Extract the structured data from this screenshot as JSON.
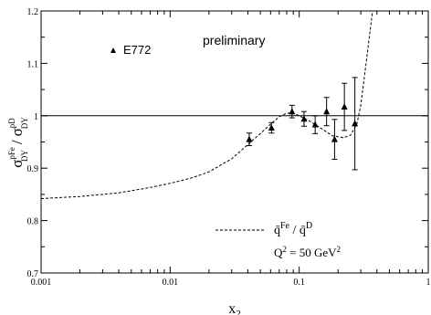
{
  "chart_data": {
    "type": "scatter",
    "title": "",
    "annotation": "preliminary",
    "xlabel": {
      "base": "x",
      "sub": "2"
    },
    "ylabel": {
      "sigma": "σ",
      "sup1": "pFe",
      "sub1": "DY",
      "slash": "/",
      "sup2": "pD",
      "sub2": "DY"
    },
    "x_scale": "log",
    "xlim": [
      0.001,
      1
    ],
    "ylim": [
      0.7,
      1.2
    ],
    "x_ticks": [
      {
        "value": 0.001,
        "label": "0.001"
      },
      {
        "value": 0.01,
        "label": "0.01"
      },
      {
        "value": 0.1,
        "label": "0.1"
      },
      {
        "value": 1,
        "label": "1"
      }
    ],
    "y_ticks": [
      {
        "value": 0.7,
        "label": "0.7"
      },
      {
        "value": 0.8,
        "label": "0.8"
      },
      {
        "value": 0.9,
        "label": "0.9"
      },
      {
        "value": 1.0,
        "label": "1"
      },
      {
        "value": 1.1,
        "label": "1.1"
      },
      {
        "value": 1.2,
        "label": "1.2"
      }
    ],
    "reference_line": 1.0,
    "legend": {
      "series_label": "E772",
      "curve_label": {
        "main": "q̄",
        "sup1": "Fe",
        "mid": " / q̄",
        "sup2": "D"
      },
      "condition": {
        "main": "Q",
        "sup": "2",
        "value": " = 50 GeV",
        "sup2": "2"
      }
    },
    "series": [
      {
        "name": "E772",
        "marker": "triangle",
        "points": [
          {
            "x": 0.041,
            "y": 0.955,
            "err": 0.012
          },
          {
            "x": 0.061,
            "y": 0.977,
            "err": 0.01
          },
          {
            "x": 0.088,
            "y": 1.008,
            "err": 0.012
          },
          {
            "x": 0.109,
            "y": 0.994,
            "err": 0.014
          },
          {
            "x": 0.133,
            "y": 0.983,
            "err": 0.017
          },
          {
            "x": 0.163,
            "y": 1.008,
            "err": 0.027
          },
          {
            "x": 0.188,
            "y": 0.955,
            "err": 0.038
          },
          {
            "x": 0.224,
            "y": 1.017,
            "err": 0.045
          },
          {
            "x": 0.27,
            "y": 0.985,
            "err": 0.088
          }
        ]
      }
    ],
    "curve": {
      "style": "dashed",
      "points": [
        [
          0.001,
          0.842
        ],
        [
          0.002,
          0.846
        ],
        [
          0.004,
          0.853
        ],
        [
          0.007,
          0.863
        ],
        [
          0.01,
          0.871
        ],
        [
          0.015,
          0.882
        ],
        [
          0.02,
          0.893
        ],
        [
          0.03,
          0.918
        ],
        [
          0.04,
          0.945
        ],
        [
          0.05,
          0.966
        ],
        [
          0.06,
          0.984
        ],
        [
          0.07,
          0.998
        ],
        [
          0.08,
          1.005
        ],
        [
          0.09,
          1.005
        ],
        [
          0.1,
          1.0
        ],
        [
          0.12,
          0.99
        ],
        [
          0.15,
          0.975
        ],
        [
          0.18,
          0.962
        ],
        [
          0.22,
          0.958
        ],
        [
          0.25,
          0.963
        ],
        [
          0.28,
          0.985
        ],
        [
          0.3,
          1.02
        ],
        [
          0.33,
          1.1
        ],
        [
          0.37,
          1.2
        ]
      ]
    }
  }
}
